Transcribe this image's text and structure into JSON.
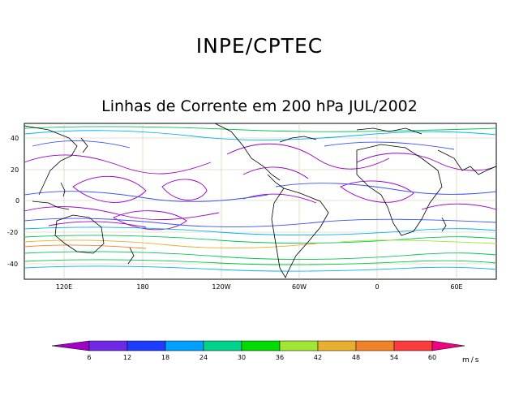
{
  "header": {
    "title": "INPE/CPTEC",
    "subtitle": "Linhas de Corrente em 200 hPa JUL/2002"
  },
  "map": {
    "lon_labels": [
      "120E",
      "180",
      "120W",
      "60W",
      "0",
      "60E"
    ],
    "lat_labels": [
      "40",
      "20",
      "0",
      "-20",
      "-40"
    ]
  },
  "colorbar": {
    "units": "m/s",
    "labels": [
      "6",
      "12",
      "18",
      "24",
      "30",
      "36",
      "42",
      "48",
      "54",
      "60"
    ],
    "colors": [
      "#a000c8",
      "#6e28e6",
      "#1e3cff",
      "#00a0ff",
      "#00d28c",
      "#00dc00",
      "#a0e632",
      "#e6af2d",
      "#f08228",
      "#fa3c3c",
      "#f00082"
    ]
  }
}
